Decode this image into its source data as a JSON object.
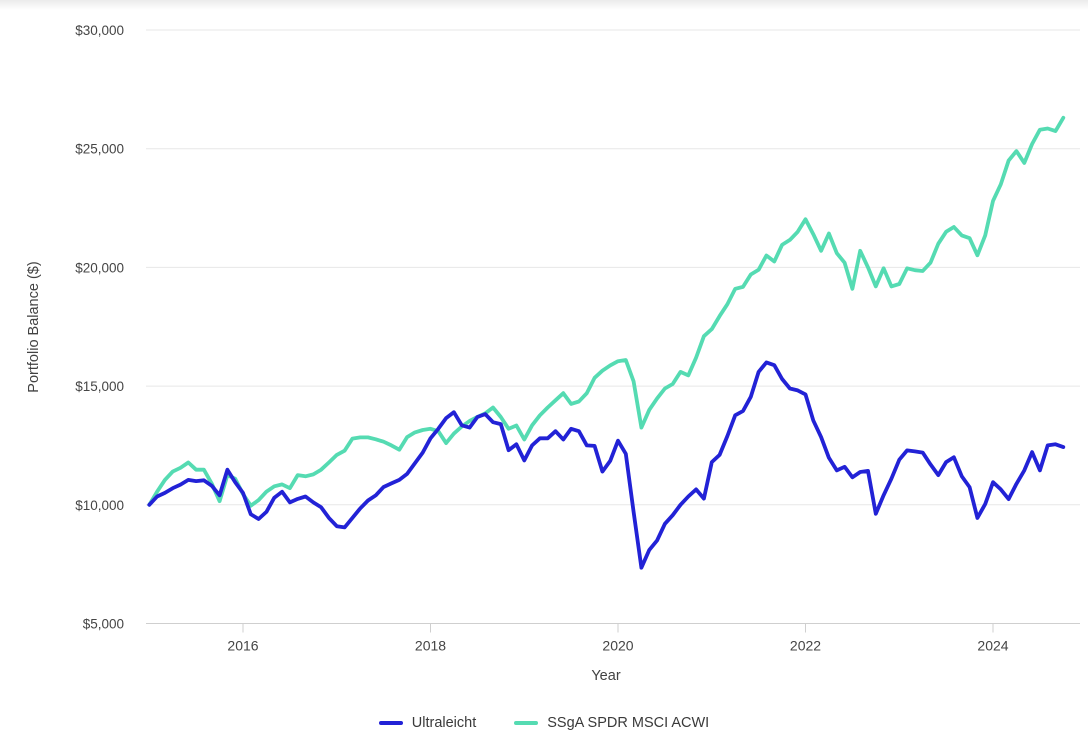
{
  "page": {
    "background": "#ffffff"
  },
  "chart_data": {
    "type": "line",
    "title": "",
    "xlabel": "Year",
    "ylabel": "Portfolio Balance ($)",
    "x_unit": "month",
    "x_start_year": 2015,
    "x_range": [
      "2015-01",
      "2024-10"
    ],
    "x_ticks": {
      "labels": [
        "2016",
        "2018",
        "2020",
        "2022",
        "2024"
      ],
      "years": [
        2016,
        2018,
        2020,
        2022,
        2024
      ]
    },
    "y_ticks": {
      "labels": [
        "$5,000",
        "$10,000",
        "$15,000",
        "$20,000",
        "$25,000",
        "$30,000"
      ],
      "values": [
        5000,
        10000,
        15000,
        20000,
        25000,
        30000
      ]
    },
    "ylim": [
      5000,
      30000
    ],
    "grid": "horizontal",
    "legend_position": "bottom",
    "series": [
      {
        "name": "Ultraleicht",
        "color": "#2222d6",
        "values": [
          10000,
          10350,
          10500,
          10700,
          10850,
          11050,
          11000,
          11030,
          10800,
          10400,
          11480,
          10950,
          10500,
          9600,
          9400,
          9700,
          10300,
          10550,
          10100,
          10250,
          10350,
          10100,
          9900,
          9450,
          9100,
          9050,
          9450,
          9850,
          10180,
          10400,
          10750,
          10900,
          11050,
          11300,
          11750,
          12200,
          12800,
          13200,
          13650,
          13900,
          13350,
          13250,
          13700,
          13820,
          13480,
          13400,
          12300,
          12550,
          11870,
          12500,
          12800,
          12800,
          13100,
          12750,
          13200,
          13100,
          12500,
          12480,
          11400,
          11850,
          12700,
          12150,
          9700,
          7350,
          8100,
          8500,
          9200,
          9560,
          10000,
          10350,
          10650,
          10260,
          11800,
          12100,
          12900,
          13770,
          13950,
          14550,
          15600,
          16000,
          15880,
          15300,
          14900,
          14820,
          14650,
          13550,
          12850,
          11980,
          11450,
          11600,
          11160,
          11380,
          11430,
          9620,
          10400,
          11100,
          11900,
          12290,
          12250,
          12200,
          11700,
          11250,
          11800,
          12000,
          11200,
          10740,
          9450,
          10030,
          10950,
          10650,
          10240,
          10880,
          11450,
          12220,
          11450,
          12500,
          12550,
          12430
        ]
      },
      {
        "name": "SSgA SPDR MSCI ACWI",
        "color": "#55dbb2",
        "values": [
          10000,
          10550,
          11050,
          11400,
          11560,
          11780,
          11480,
          11480,
          10890,
          10150,
          11250,
          11100,
          10450,
          9960,
          10200,
          10550,
          10780,
          10860,
          10700,
          11250,
          11200,
          11280,
          11480,
          11780,
          12100,
          12280,
          12790,
          12840,
          12840,
          12760,
          12660,
          12500,
          12320,
          12850,
          13050,
          13150,
          13200,
          13100,
          12600,
          13000,
          13300,
          13530,
          13700,
          13850,
          14100,
          13700,
          13200,
          13340,
          12750,
          13350,
          13770,
          14100,
          14400,
          14700,
          14250,
          14350,
          14700,
          15350,
          15650,
          15870,
          16050,
          16100,
          15200,
          13250,
          14000,
          14480,
          14900,
          15090,
          15600,
          15450,
          16200,
          17100,
          17400,
          17950,
          18450,
          19100,
          19180,
          19700,
          19900,
          20500,
          20250,
          20950,
          21160,
          21500,
          22030,
          21400,
          20700,
          21430,
          20600,
          20200,
          19100,
          20700,
          20000,
          19200,
          19960,
          19200,
          19300,
          19960,
          19880,
          19850,
          20200,
          21000,
          21500,
          21700,
          21350,
          21230,
          20510,
          21350,
          22800,
          23500,
          24500,
          24900,
          24400,
          25200,
          25800,
          25850,
          25740,
          26300
        ]
      }
    ],
    "style": {
      "gridline_color": "#e7e7e7",
      "axis_line_color": "#cfcfcf",
      "line_width": 3.8
    }
  },
  "legend": {
    "items": [
      {
        "label": "Ultraleicht",
        "color": "#2222d6"
      },
      {
        "label": "SSgA SPDR MSCI ACWI",
        "color": "#55dbb2"
      }
    ]
  }
}
